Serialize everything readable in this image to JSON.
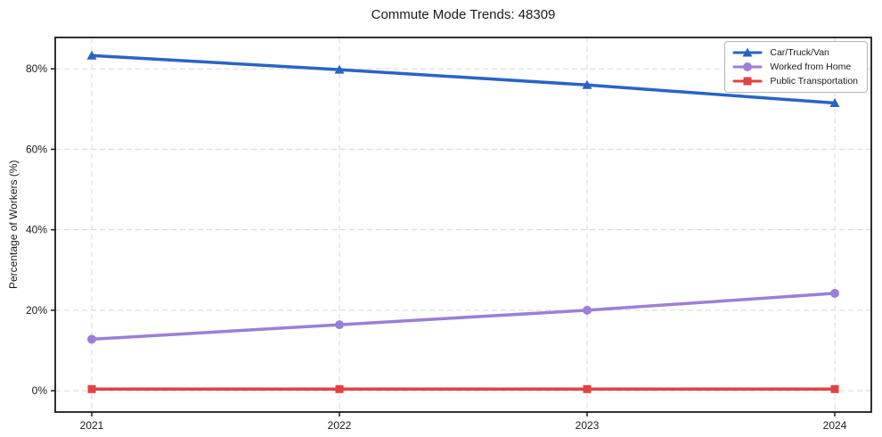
{
  "chart_data": {
    "type": "line",
    "title": "Commute Mode Trends: 48309",
    "xlabel": "",
    "ylabel": "Percentage of Workers (%)",
    "categories": [
      "2021",
      "2022",
      "2023",
      "2024"
    ],
    "y_ticks": [
      "0%",
      "20%",
      "40%",
      "60%",
      "80%"
    ],
    "y_tick_values": [
      0,
      20,
      40,
      60,
      80
    ],
    "ylim": [
      -5.3,
      87.8
    ],
    "grid": "dashed",
    "grid_color": "#d8d8d8",
    "axis_color": "#1a1a1a",
    "legend_position": "upper right",
    "series": [
      {
        "name": "Car/Truck/Van",
        "marker": "triangle",
        "color": "#2a63c6",
        "values": [
          83.3,
          79.8,
          76.0,
          71.5
        ]
      },
      {
        "name": "Worked from Home",
        "marker": "circle",
        "color": "#9b7fd9",
        "values": [
          12.8,
          16.4,
          20.0,
          24.2
        ]
      },
      {
        "name": "Public Transportation",
        "marker": "square",
        "color": "#e24242",
        "values": [
          0.4,
          0.4,
          0.4,
          0.4
        ]
      }
    ]
  }
}
